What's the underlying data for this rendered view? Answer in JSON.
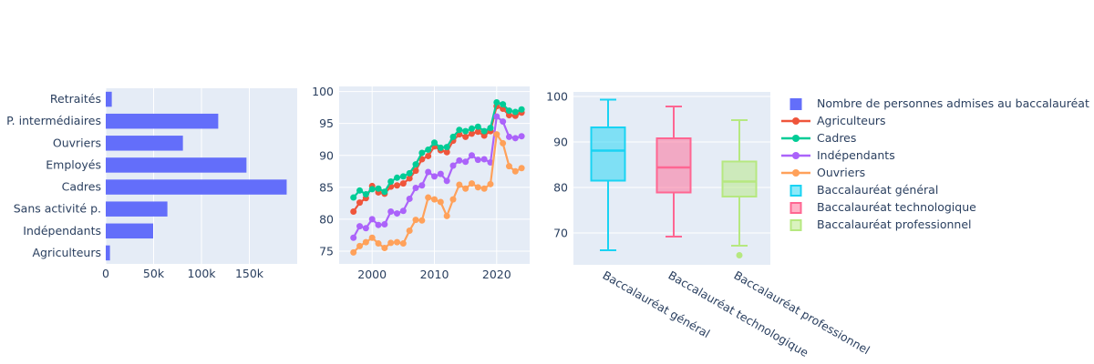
{
  "figure": {
    "background": "#ffffff",
    "plot_bgcolor": "#E5ECF6",
    "grid_color": "#ffffff",
    "text_color": "#2a3f5f"
  },
  "legend": {
    "items": [
      {
        "label": "Nombre de personnes admises au baccalauréat",
        "symbol": "square",
        "color": "#636EFA"
      },
      {
        "label": "Agriculteurs",
        "symbol": "line-marker",
        "color": "#EF553B"
      },
      {
        "label": "Cadres",
        "symbol": "line-marker",
        "color": "#00CC96"
      },
      {
        "label": "Indépendants",
        "symbol": "line-marker",
        "color": "#AB63FA"
      },
      {
        "label": "Ouvriers",
        "symbol": "line-marker",
        "color": "#FFA15A"
      },
      {
        "label": "Baccalauréat général",
        "symbol": "box",
        "color": "#19D3F3"
      },
      {
        "label": "Baccalauréat technologique",
        "symbol": "box",
        "color": "#FF6692"
      },
      {
        "label": "Baccalauréat professionnel",
        "symbol": "box",
        "color": "#B6E880"
      }
    ]
  },
  "chart_data": [
    {
      "type": "bar",
      "orientation": "horizontal",
      "name": "Nombre de personnes admises au baccalauréat",
      "color": "#636EFA",
      "categories_top_to_bottom": [
        "Retraités",
        "P. intermédiaires",
        "Ouvriers",
        "Employés",
        "Cadres",
        "Sans activité p.",
        "Indépendants",
        "Agriculteurs"
      ],
      "values": [
        6300,
        117500,
        80600,
        147000,
        189000,
        64400,
        49500,
        4400
      ],
      "x_tick_labels": [
        "0",
        "50k",
        "100k",
        "150k"
      ],
      "x_tick_values": [
        0,
        50000,
        100000,
        150000
      ],
      "xlim": [
        0,
        200000
      ],
      "grid": true,
      "legend_position": "right"
    },
    {
      "type": "line",
      "title": "",
      "x": [
        1997,
        1998,
        1999,
        2000,
        2001,
        2002,
        2003,
        2004,
        2005,
        2006,
        2007,
        2008,
        2009,
        2010,
        2011,
        2012,
        2013,
        2014,
        2015,
        2016,
        2017,
        2018,
        2019,
        2020,
        2021,
        2022,
        2023,
        2024
      ],
      "series": [
        {
          "name": "Agriculteurs",
          "color": "#EF553B",
          "values": [
            81.2,
            82.6,
            83.3,
            85.2,
            84.2,
            84.0,
            85.1,
            85.3,
            85.6,
            86.4,
            87.6,
            89.4,
            89.9,
            91.4,
            90.8,
            90.5,
            92.3,
            93.3,
            92.9,
            93.4,
            93.7,
            93.1,
            93.8,
            97.7,
            97.3,
            96.3,
            96.2,
            96.7
          ]
        },
        {
          "name": "Cadres",
          "color": "#00CC96",
          "values": [
            83.4,
            84.5,
            83.9,
            84.7,
            84.8,
            84.3,
            85.9,
            86.5,
            86.7,
            87.2,
            88.6,
            90.4,
            90.9,
            92.0,
            91.2,
            91.3,
            92.9,
            94.0,
            93.8,
            94.2,
            94.5,
            93.8,
            94.3,
            98.3,
            98.0,
            97.0,
            96.8,
            97.2
          ]
        },
        {
          "name": "Indépendants",
          "color": "#AB63FA",
          "values": [
            77.1,
            78.9,
            78.6,
            80.0,
            79.1,
            79.2,
            81.2,
            80.9,
            81.3,
            83.2,
            84.9,
            85.3,
            87.4,
            86.7,
            87.1,
            86.0,
            88.4,
            89.2,
            89.0,
            90.0,
            89.3,
            89.4,
            88.9,
            96.1,
            95.3,
            92.9,
            92.7,
            93.0
          ]
        },
        {
          "name": "Ouvriers",
          "color": "#FFA15A",
          "values": [
            74.8,
            75.8,
            76.4,
            77.1,
            76.2,
            75.5,
            76.3,
            76.4,
            76.2,
            78.2,
            79.9,
            79.8,
            83.4,
            83.1,
            82.7,
            80.5,
            83.1,
            85.4,
            84.8,
            85.6,
            85.0,
            84.8,
            85.5,
            93.3,
            91.9,
            88.3,
            87.5,
            88.0
          ]
        }
      ],
      "x_tick_labels": [
        "2000",
        "2010",
        "2020"
      ],
      "x_tick_values": [
        2000,
        2010,
        2020
      ],
      "y_tick_labels": [
        "75",
        "80",
        "85",
        "90",
        "95",
        "100"
      ],
      "y_tick_values": [
        75,
        80,
        85,
        90,
        95,
        100
      ],
      "xlim": [
        1994.7,
        2025.3
      ],
      "ylim": [
        73,
        100.8
      ],
      "grid": true,
      "markers": true
    },
    {
      "type": "box",
      "categories": [
        "Baccalauréat général",
        "Baccalauréat technologique",
        "Baccalauréat professionnel"
      ],
      "boxes": [
        {
          "name": "Baccalauréat général",
          "color": "#19D3F3",
          "min": 66.2,
          "q1": 81.5,
          "median": 88.1,
          "q3": 93.2,
          "max": 99.3,
          "outliers": []
        },
        {
          "name": "Baccalauréat technologique",
          "color": "#FF6692",
          "min": 69.2,
          "q1": 78.9,
          "median": 84.4,
          "q3": 90.8,
          "max": 97.8,
          "outliers": []
        },
        {
          "name": "Baccalauréat professionnel",
          "color": "#B6E880",
          "min": 67.2,
          "q1": 78.0,
          "median": 81.3,
          "q3": 85.7,
          "max": 94.8,
          "outliers": [
            65.1
          ]
        }
      ],
      "y_tick_labels": [
        "70",
        "80",
        "90",
        "100"
      ],
      "y_tick_values": [
        70,
        80,
        90,
        100
      ],
      "ylim": [
        63,
        101
      ],
      "x_tick_angle": 30,
      "grid": true
    }
  ]
}
